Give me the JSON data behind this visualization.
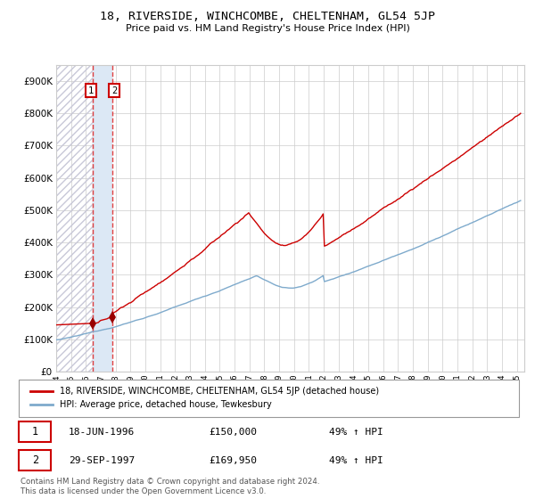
{
  "title": "18, RIVERSIDE, WINCHCOMBE, CHELTENHAM, GL54 5JP",
  "subtitle": "Price paid vs. HM Land Registry's House Price Index (HPI)",
  "red_label": "18, RIVERSIDE, WINCHCOMBE, CHELTENHAM, GL54 5JP (detached house)",
  "blue_label": "HPI: Average price, detached house, Tewkesbury",
  "transaction1_date": "18-JUN-1996",
  "transaction1_price": 150000,
  "transaction1_hpi": "49% ↑ HPI",
  "transaction2_date": "29-SEP-1997",
  "transaction2_price": 169950,
  "transaction2_hpi": "49% ↑ HPI",
  "footer": "Contains HM Land Registry data © Crown copyright and database right 2024.\nThis data is licensed under the Open Government Licence v3.0.",
  "ylim": [
    0,
    950000
  ],
  "yticks": [
    0,
    100000,
    200000,
    300000,
    400000,
    500000,
    600000,
    700000,
    800000,
    900000
  ],
  "start_year": 1994.0,
  "end_year": 2025.5,
  "red_color": "#cc0000",
  "blue_color": "#7eaacc",
  "grid_color": "#cccccc",
  "vline_color": "#dd2222",
  "vspan_color": "#dce8f5",
  "marker_color": "#990000",
  "box_color": "#cc0000",
  "hatch_color": "#c8c8d8",
  "t1_year": 1996.46,
  "t2_year": 1997.75
}
